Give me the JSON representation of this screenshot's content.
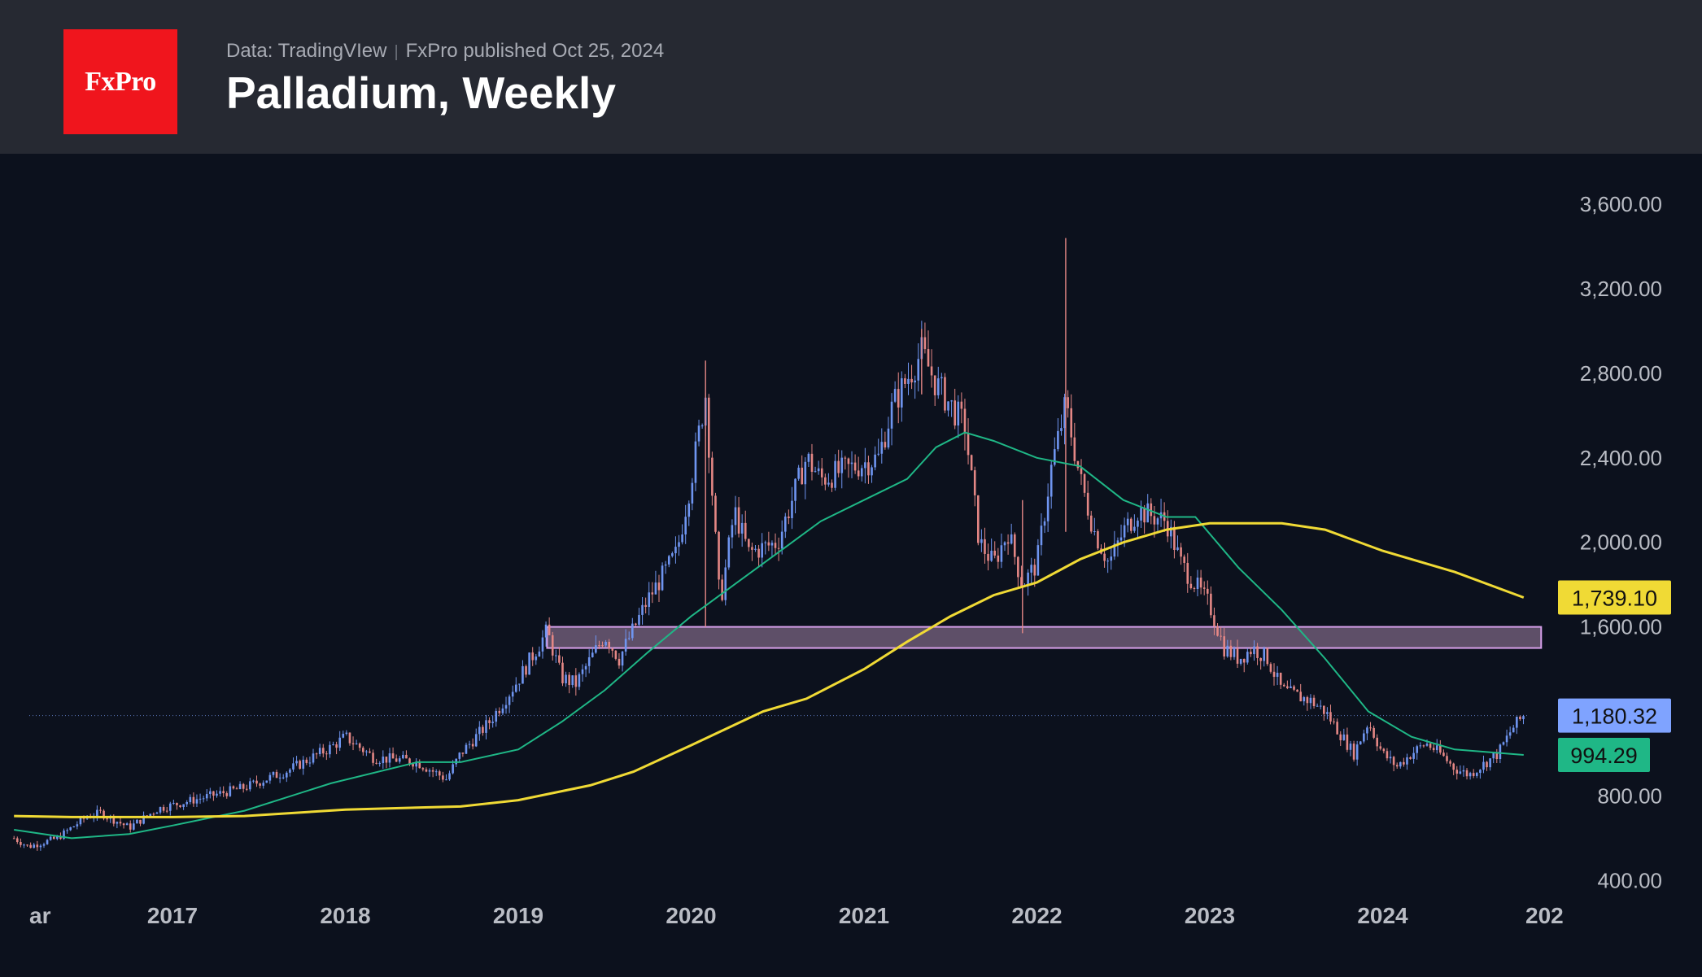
{
  "header": {
    "logo_text": "FxPro",
    "source": "Data: TradingVIew",
    "published": "FxPro published Oct 25, 2024",
    "title": "Palladium, Weekly"
  },
  "colors": {
    "header_bg": "#262932",
    "chart_bg": "#0c111d",
    "logo_bg": "#f0151d",
    "up_candle": "#6f95f0",
    "down_candle": "#e48785",
    "ma_short": "#1fb786",
    "ma_long": "#f0da35",
    "zone_fill": "#e6b5e3",
    "zone_border": "#d7a0ea",
    "current_price": "#7fa3ff"
  },
  "chart_data": {
    "type": "candlestick",
    "title": "Palladium, Weekly",
    "timeframe": "Weekly",
    "x_axis": {
      "range": [
        "2016-02",
        "2025-01"
      ],
      "ticks": [
        {
          "label": "ar",
          "date": "2016-03"
        },
        {
          "label": "2017",
          "date": "2017-01"
        },
        {
          "label": "2018",
          "date": "2018-01"
        },
        {
          "label": "2019",
          "date": "2019-01"
        },
        {
          "label": "2020",
          "date": "2020-01"
        },
        {
          "label": "2021",
          "date": "2021-01"
        },
        {
          "label": "2022",
          "date": "2022-01"
        },
        {
          "label": "2023",
          "date": "2023-01"
        },
        {
          "label": "2024",
          "date": "2024-01"
        },
        {
          "label": "202",
          "date": "2025-01"
        }
      ]
    },
    "y_axis": {
      "range": [
        360,
        3780
      ],
      "ticks": [
        "3,600.00",
        "3,200.00",
        "2,800.00",
        "2,400.00",
        "2,000.00",
        "1,600.00",
        "800.00",
        "400.00"
      ],
      "tick_values": [
        3600,
        3200,
        2800,
        2400,
        2000,
        1600,
        800,
        400
      ]
    },
    "price_path": [
      [
        "2016-02",
        600
      ],
      [
        "2016-03",
        560
      ],
      [
        "2016-05",
        600
      ],
      [
        "2016-07",
        700
      ],
      [
        "2016-08",
        720
      ],
      [
        "2016-10",
        650
      ],
      [
        "2016-12",
        740
      ],
      [
        "2017-03",
        790
      ],
      [
        "2017-06",
        840
      ],
      [
        "2017-09",
        920
      ],
      [
        "2017-12",
        1030
      ],
      [
        "2018-01",
        1080
      ],
      [
        "2018-03",
        980
      ],
      [
        "2018-05",
        970
      ],
      [
        "2018-06",
        960
      ],
      [
        "2018-08",
        880
      ],
      [
        "2018-09",
        1000
      ],
      [
        "2018-11",
        1150
      ],
      [
        "2019-01",
        1350
      ],
      [
        "2019-03",
        1580
      ],
      [
        "2019-04",
        1360
      ],
      [
        "2019-05",
        1330
      ],
      [
        "2019-07",
        1560
      ],
      [
        "2019-08",
        1450
      ],
      [
        "2019-10",
        1730
      ],
      [
        "2019-12",
        1950
      ],
      [
        "2020-01",
        2300
      ],
      [
        "2020-02",
        2700
      ],
      [
        "2020-03",
        1700
      ],
      [
        "2020-04",
        2150
      ],
      [
        "2020-05",
        1950
      ],
      [
        "2020-07",
        2000
      ],
      [
        "2020-08",
        2200
      ],
      [
        "2020-09",
        2400
      ],
      [
        "2020-10",
        2300
      ],
      [
        "2020-12",
        2350
      ],
      [
        "2021-02",
        2400
      ],
      [
        "2021-03",
        2650
      ],
      [
        "2021-05",
        2900
      ],
      [
        "2021-06",
        2750
      ],
      [
        "2021-07",
        2650
      ],
      [
        "2021-08",
        2550
      ],
      [
        "2021-09",
        2000
      ],
      [
        "2021-10",
        1900
      ],
      [
        "2021-11",
        2050
      ],
      [
        "2021-12",
        1800
      ],
      [
        "2022-01",
        1900
      ],
      [
        "2022-02",
        2350
      ],
      [
        "2022-03",
        2650
      ],
      [
        "2022-04",
        2300
      ],
      [
        "2022-05",
        2050
      ],
      [
        "2022-06",
        1900
      ],
      [
        "2022-07",
        2050
      ],
      [
        "2022-08",
        2150
      ],
      [
        "2022-10",
        2100
      ],
      [
        "2022-11",
        1900
      ],
      [
        "2022-12",
        1800
      ],
      [
        "2023-01",
        1700
      ],
      [
        "2023-02",
        1500
      ],
      [
        "2023-03",
        1450
      ],
      [
        "2023-04",
        1500
      ],
      [
        "2023-05",
        1450
      ],
      [
        "2023-06",
        1300
      ],
      [
        "2023-08",
        1250
      ],
      [
        "2023-09",
        1200
      ],
      [
        "2023-10",
        1100
      ],
      [
        "2023-11",
        1000
      ],
      [
        "2023-12",
        1150
      ],
      [
        "2024-01",
        1000
      ],
      [
        "2024-02",
        940
      ],
      [
        "2024-03",
        1000
      ],
      [
        "2024-04",
        1050
      ],
      [
        "2024-05",
        1000
      ],
      [
        "2024-06",
        930
      ],
      [
        "2024-07",
        900
      ],
      [
        "2024-08",
        950
      ],
      [
        "2024-09",
        1000
      ],
      [
        "2024-10",
        1120
      ],
      [
        "2024-10-25",
        1180.32
      ]
    ],
    "spikes": [
      {
        "date": "2020-02",
        "high": 2860,
        "low": 1600
      },
      {
        "date": "2022-03",
        "high": 3440,
        "low": 2050
      },
      {
        "date": "2021-05",
        "high": 3010,
        "low": 2700
      },
      {
        "date": "2021-12",
        "high": 2200,
        "low": 1570
      }
    ],
    "series": [
      {
        "role": "ma_short",
        "color": "#1fb786",
        "points": [
          [
            "2016-02",
            640
          ],
          [
            "2016-06",
            600
          ],
          [
            "2016-10",
            620
          ],
          [
            "2017-01",
            660
          ],
          [
            "2017-06",
            730
          ],
          [
            "2017-12",
            860
          ],
          [
            "2018-06",
            960
          ],
          [
            "2018-09",
            960
          ],
          [
            "2019-01",
            1020
          ],
          [
            "2019-04",
            1150
          ],
          [
            "2019-07",
            1300
          ],
          [
            "2019-10",
            1480
          ],
          [
            "2020-01",
            1650
          ],
          [
            "2020-04",
            1800
          ],
          [
            "2020-07",
            1950
          ],
          [
            "2020-10",
            2100
          ],
          [
            "2021-01",
            2200
          ],
          [
            "2021-04",
            2300
          ],
          [
            "2021-06",
            2450
          ],
          [
            "2021-08",
            2520
          ],
          [
            "2021-10",
            2480
          ],
          [
            "2022-01",
            2400
          ],
          [
            "2022-04",
            2360
          ],
          [
            "2022-07",
            2200
          ],
          [
            "2022-10",
            2120
          ],
          [
            "2022-12",
            2120
          ],
          [
            "2023-03",
            1880
          ],
          [
            "2023-06",
            1680
          ],
          [
            "2023-09",
            1450
          ],
          [
            "2023-12",
            1200
          ],
          [
            "2024-03",
            1080
          ],
          [
            "2024-06",
            1020
          ],
          [
            "2024-10-25",
            994.29
          ]
        ]
      },
      {
        "role": "ma_long",
        "color": "#f0da35",
        "points": [
          [
            "2016-02",
            705
          ],
          [
            "2016-06",
            700
          ],
          [
            "2017-01",
            700
          ],
          [
            "2017-06",
            705
          ],
          [
            "2018-01",
            735
          ],
          [
            "2018-06",
            745
          ],
          [
            "2018-09",
            750
          ],
          [
            "2019-01",
            780
          ],
          [
            "2019-06",
            850
          ],
          [
            "2019-09",
            915
          ],
          [
            "2020-01",
            1040
          ],
          [
            "2020-06",
            1200
          ],
          [
            "2020-09",
            1260
          ],
          [
            "2021-01",
            1400
          ],
          [
            "2021-04",
            1530
          ],
          [
            "2021-07",
            1650
          ],
          [
            "2021-10",
            1750
          ],
          [
            "2022-01",
            1810
          ],
          [
            "2022-04",
            1920
          ],
          [
            "2022-07",
            2000
          ],
          [
            "2022-10",
            2060
          ],
          [
            "2023-01",
            2090
          ],
          [
            "2023-06",
            2090
          ],
          [
            "2023-09",
            2060
          ],
          [
            "2024-01",
            1960
          ],
          [
            "2024-06",
            1860
          ],
          [
            "2024-10-25",
            1739.1
          ]
        ]
      }
    ],
    "zone": {
      "x_start": "2019-03",
      "x_end": "2024-12",
      "y_low": 1500,
      "y_high": 1600
    },
    "current_line": 1180.32,
    "labels": [
      {
        "text": "1,739.10",
        "value": 1739.1,
        "bg": "#f0da35",
        "fg": "#111111"
      },
      {
        "text": "1,180.32",
        "value": 1180.32,
        "bg": "#7fa3ff",
        "fg": "#111111"
      },
      {
        "text": "994.29",
        "value": 994.29,
        "bg": "#1fb786",
        "fg": "#111111"
      }
    ],
    "grid": false,
    "legend": "none"
  }
}
